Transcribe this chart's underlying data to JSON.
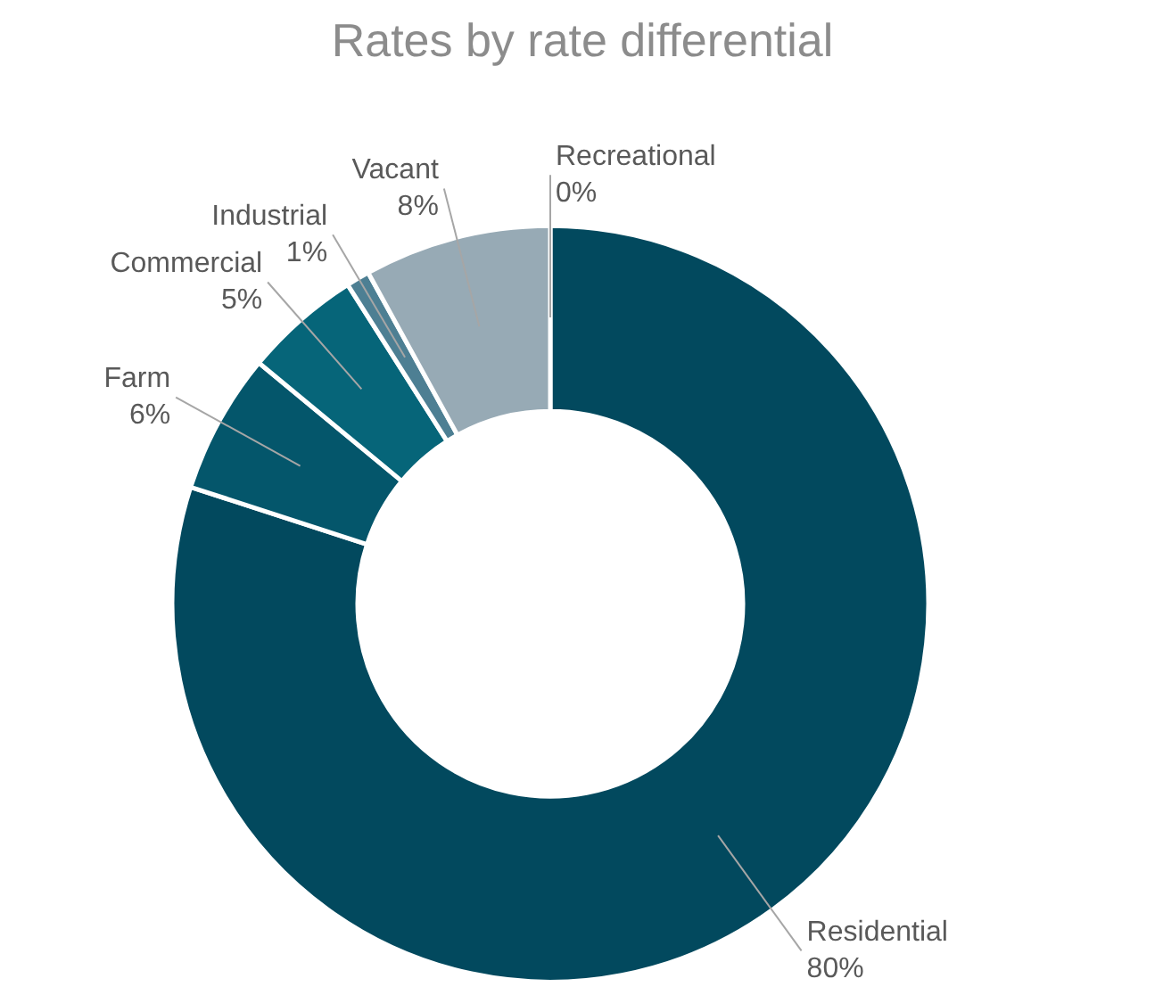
{
  "chart_data": {
    "type": "donut",
    "title": "Rates by rate differential",
    "categories": [
      "Residential",
      "Farm",
      "Commercial",
      "Industrial",
      "Vacant",
      "Recreational"
    ],
    "values": [
      80,
      6,
      5,
      1,
      8,
      0
    ],
    "value_labels": [
      "80%",
      "6%",
      "5%",
      "1%",
      "8%",
      "0%"
    ],
    "colors": [
      "#02495e",
      "#04566b",
      "#066579",
      "#4d7f93",
      "#97aab5",
      "#c9d3d9"
    ]
  }
}
